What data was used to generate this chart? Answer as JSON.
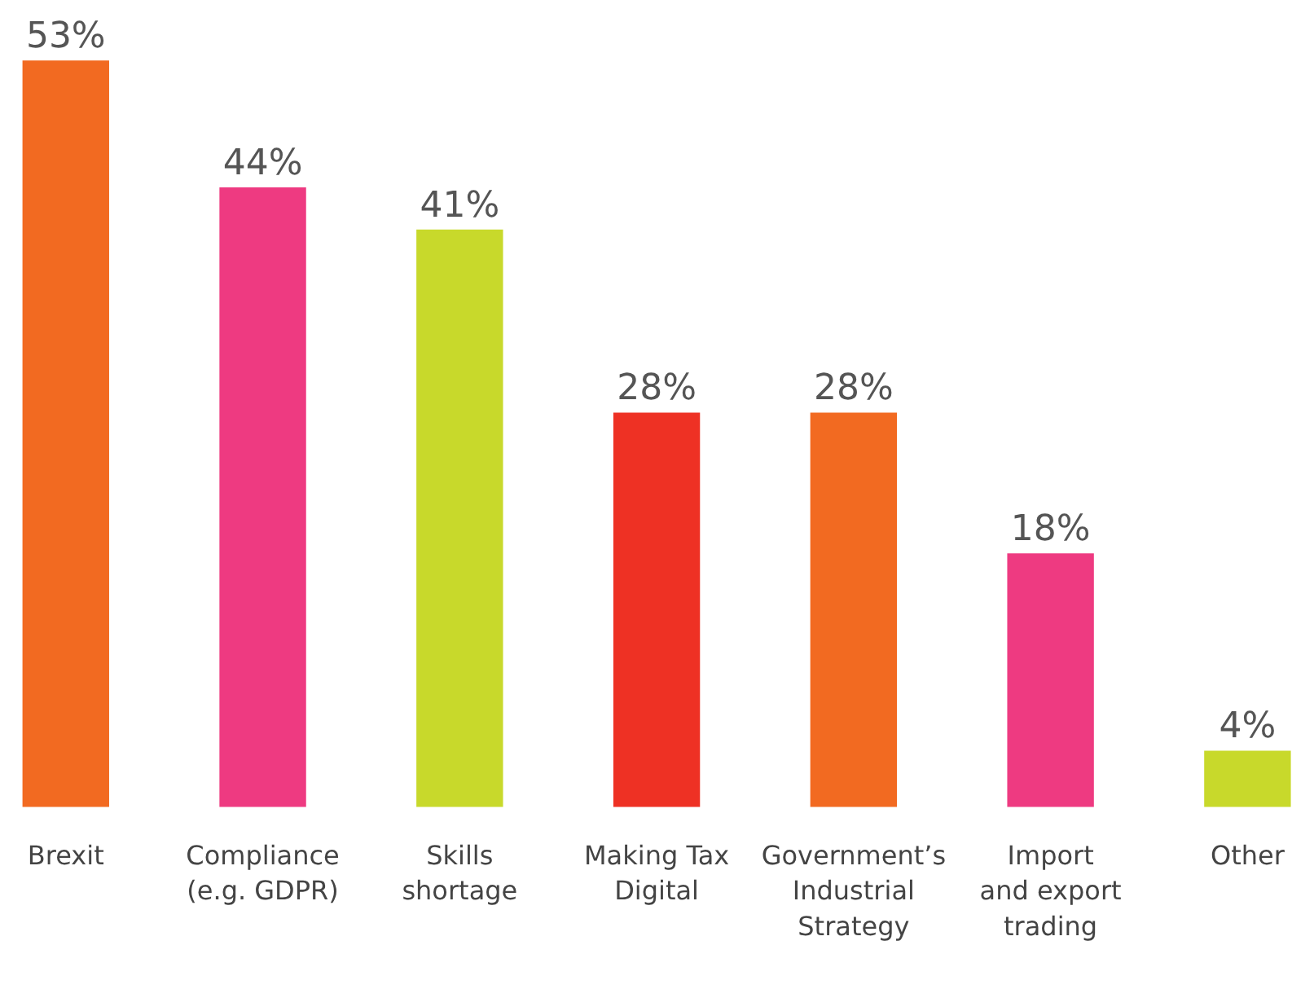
{
  "chart_data": {
    "type": "bar",
    "categories": [
      "Brexit",
      "Compliance\n(e.g. GDPR)",
      "Skills\nshortage",
      "Making Tax\nDigital",
      "Government’s\nIndustrial\nStrategy",
      "Import\nand export\ntrading",
      "Other"
    ],
    "values": [
      53,
      44,
      41,
      28,
      28,
      18,
      4
    ],
    "value_labels": [
      "53%",
      "44%",
      "41%",
      "28%",
      "28%",
      "18%",
      "4%"
    ],
    "colors": [
      "#f26a21",
      "#ee3a81",
      "#c8d92b",
      "#ee3124",
      "#f26a21",
      "#ee3a81",
      "#c8d92b"
    ],
    "data_labels": true
  }
}
